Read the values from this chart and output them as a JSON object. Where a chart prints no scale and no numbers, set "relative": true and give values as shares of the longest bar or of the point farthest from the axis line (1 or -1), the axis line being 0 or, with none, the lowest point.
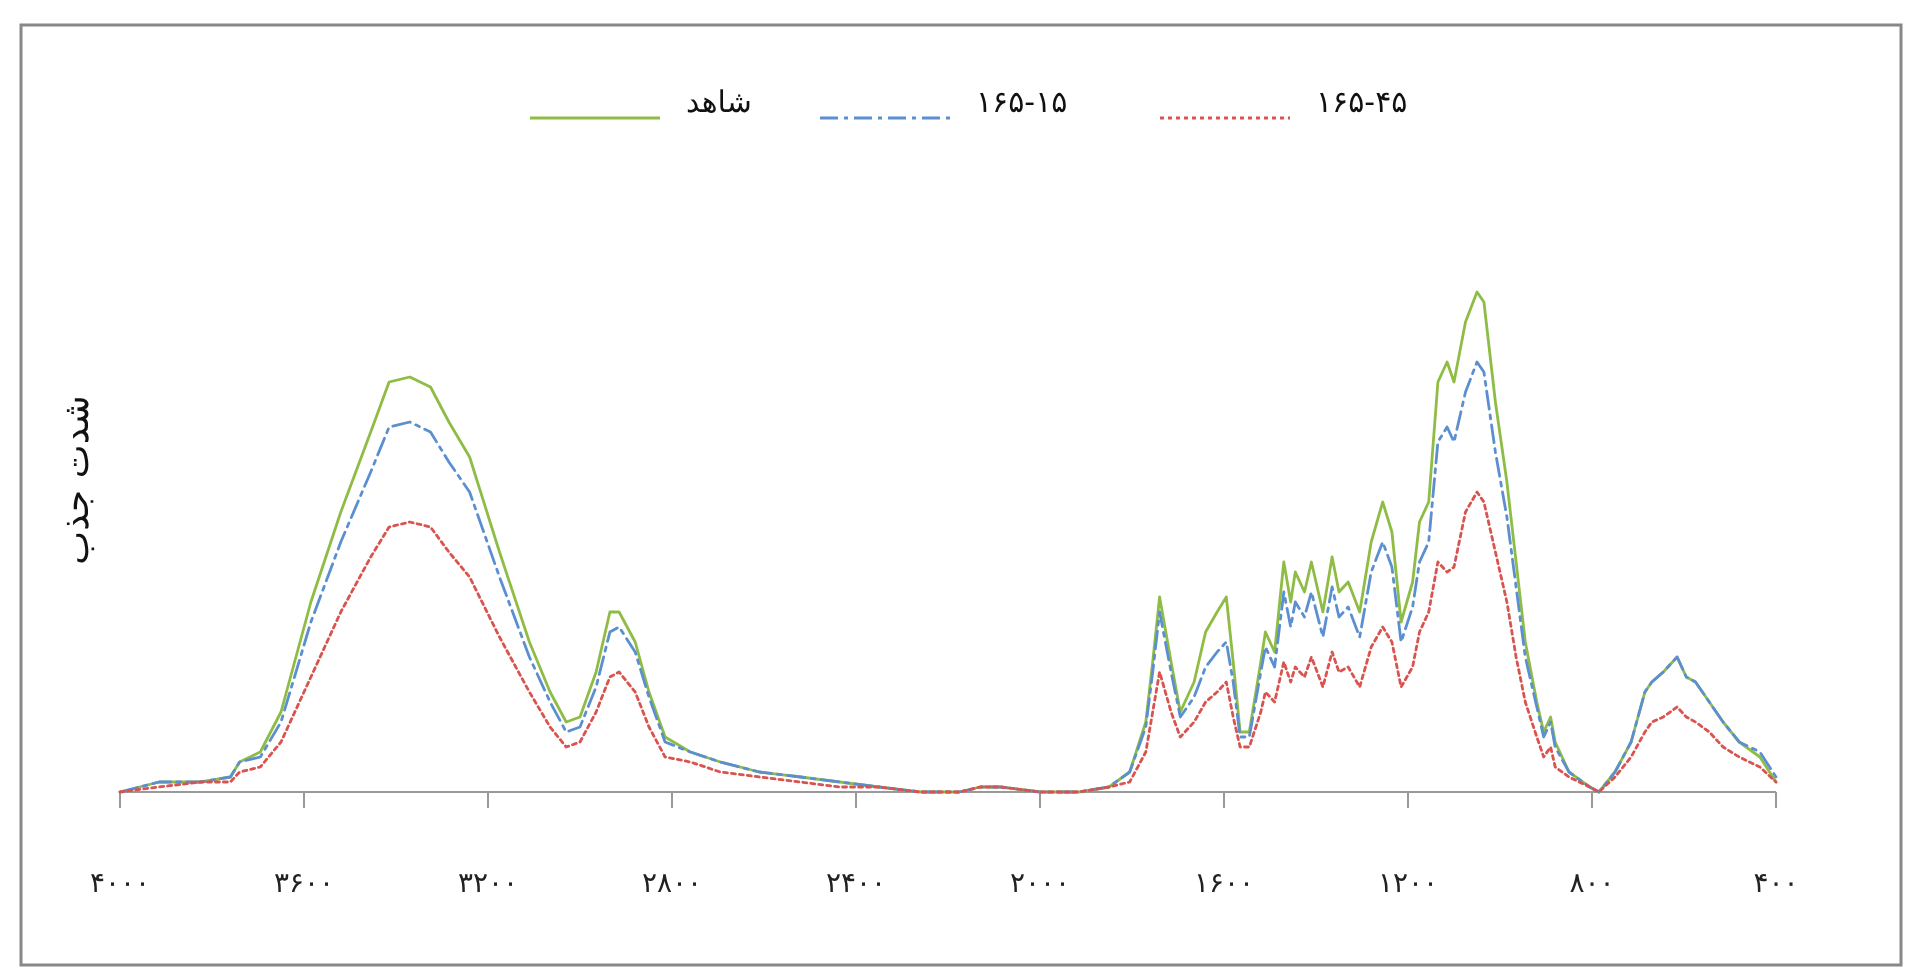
{
  "chart_data": {
    "type": "line",
    "ylabel": "شدت جذب",
    "relative": true,
    "legend": "top",
    "grid": false,
    "xlim": [
      4000,
      400
    ],
    "xticks": [
      {
        "value": 4000,
        "label": "۴۰۰۰"
      },
      {
        "value": 3600,
        "label": "۳۶۰۰"
      },
      {
        "value": 3200,
        "label": "۳۲۰۰"
      },
      {
        "value": 2800,
        "label": "۲۸۰۰"
      },
      {
        "value": 2400,
        "label": "۲۴۰۰"
      },
      {
        "value": 2000,
        "label": "۲۰۰۰"
      },
      {
        "value": 1600,
        "label": "۱۶۰۰"
      },
      {
        "value": 1200,
        "label": "۱۲۰۰"
      },
      {
        "value": 800,
        "label": "۸۰۰"
      },
      {
        "value": 400,
        "label": "۴۰۰"
      }
    ],
    "x": [
      4000,
      3915,
      3825,
      3760,
      3740,
      3695,
      3650,
      3585,
      3520,
      3455,
      3415,
      3370,
      3325,
      3285,
      3240,
      3175,
      3110,
      3065,
      3030,
      3000,
      2965,
      2935,
      2915,
      2880,
      2850,
      2815,
      2760,
      2695,
      2610,
      2520,
      2435,
      2350,
      2260,
      2175,
      2130,
      2085,
      2000,
      1915,
      1850,
      1805,
      1770,
      1755,
      1740,
      1715,
      1695,
      1665,
      1640,
      1615,
      1595,
      1580,
      1565,
      1545,
      1520,
      1510,
      1490,
      1470,
      1455,
      1445,
      1425,
      1410,
      1385,
      1365,
      1350,
      1330,
      1305,
      1280,
      1255,
      1235,
      1215,
      1190,
      1175,
      1155,
      1135,
      1115,
      1100,
      1075,
      1050,
      1035,
      1010,
      985,
      965,
      945,
      920,
      905,
      890,
      880,
      850,
      805,
      785,
      750,
      715,
      685,
      670,
      645,
      615,
      595,
      575,
      545,
      515,
      480,
      435,
      400
    ],
    "series": [
      {
        "name": "شاهد",
        "color": "#8fbc45",
        "line_style": "solid",
        "values": [
          0,
          0.02,
          0.02,
          0.03,
          0.06,
          0.08,
          0.16,
          0.38,
          0.56,
          0.72,
          0.82,
          0.83,
          0.81,
          0.74,
          0.67,
          0.48,
          0.3,
          0.2,
          0.14,
          0.15,
          0.24,
          0.36,
          0.36,
          0.3,
          0.2,
          0.11,
          0.08,
          0.06,
          0.04,
          0.03,
          0.02,
          0.01,
          0,
          0,
          0.01,
          0.01,
          0,
          0,
          0.01,
          0.04,
          0.14,
          0.26,
          0.39,
          0.26,
          0.16,
          0.22,
          0.32,
          0.36,
          0.39,
          0.26,
          0.12,
          0.12,
          0.26,
          0.32,
          0.28,
          0.46,
          0.38,
          0.44,
          0.4,
          0.46,
          0.36,
          0.47,
          0.4,
          0.42,
          0.36,
          0.5,
          0.58,
          0.52,
          0.34,
          0.42,
          0.54,
          0.58,
          0.82,
          0.86,
          0.82,
          0.94,
          1.0,
          0.98,
          0.78,
          0.62,
          0.46,
          0.3,
          0.18,
          0.12,
          0.15,
          0.1,
          0.04,
          0.01,
          0,
          0.04,
          0.1,
          0.2,
          0.22,
          0.24,
          0.27,
          0.23,
          0.22,
          0.18,
          0.14,
          0.1,
          0.07,
          0.02
        ]
      },
      {
        "name": "۱۶۵-۱۵",
        "color": "#5b8fd0",
        "line_style": "dashed",
        "values": [
          0,
          0.02,
          0.02,
          0.03,
          0.06,
          0.07,
          0.14,
          0.34,
          0.5,
          0.64,
          0.73,
          0.74,
          0.72,
          0.66,
          0.6,
          0.43,
          0.27,
          0.18,
          0.12,
          0.13,
          0.21,
          0.32,
          0.33,
          0.28,
          0.19,
          0.1,
          0.08,
          0.06,
          0.04,
          0.03,
          0.02,
          0.01,
          0,
          0,
          0.01,
          0.01,
          0,
          0,
          0.01,
          0.04,
          0.13,
          0.24,
          0.36,
          0.24,
          0.15,
          0.19,
          0.25,
          0.28,
          0.3,
          0.22,
          0.11,
          0.11,
          0.24,
          0.29,
          0.25,
          0.4,
          0.33,
          0.38,
          0.35,
          0.4,
          0.31,
          0.41,
          0.35,
          0.37,
          0.31,
          0.44,
          0.5,
          0.45,
          0.3,
          0.37,
          0.46,
          0.5,
          0.7,
          0.73,
          0.7,
          0.8,
          0.86,
          0.84,
          0.68,
          0.55,
          0.41,
          0.27,
          0.17,
          0.11,
          0.14,
          0.09,
          0.04,
          0.01,
          0,
          0.04,
          0.1,
          0.2,
          0.22,
          0.24,
          0.27,
          0.23,
          0.22,
          0.18,
          0.14,
          0.1,
          0.08,
          0.03
        ]
      },
      {
        "name": "۱۶۵-۴۵",
        "color": "#d9534f",
        "line_style": "dotted",
        "values": [
          0,
          0.01,
          0.02,
          0.02,
          0.04,
          0.05,
          0.1,
          0.23,
          0.36,
          0.47,
          0.53,
          0.54,
          0.53,
          0.48,
          0.43,
          0.31,
          0.2,
          0.13,
          0.09,
          0.1,
          0.16,
          0.23,
          0.24,
          0.2,
          0.13,
          0.07,
          0.06,
          0.04,
          0.03,
          0.02,
          0.01,
          0.01,
          0,
          0,
          0.01,
          0.01,
          0,
          0,
          0.01,
          0.02,
          0.08,
          0.16,
          0.24,
          0.16,
          0.11,
          0.14,
          0.18,
          0.2,
          0.22,
          0.15,
          0.09,
          0.09,
          0.16,
          0.2,
          0.18,
          0.26,
          0.22,
          0.25,
          0.23,
          0.27,
          0.21,
          0.28,
          0.24,
          0.25,
          0.21,
          0.29,
          0.33,
          0.3,
          0.21,
          0.25,
          0.32,
          0.36,
          0.46,
          0.44,
          0.45,
          0.56,
          0.6,
          0.58,
          0.48,
          0.38,
          0.27,
          0.18,
          0.11,
          0.07,
          0.09,
          0.05,
          0.03,
          0.01,
          0,
          0.03,
          0.07,
          0.12,
          0.14,
          0.15,
          0.17,
          0.15,
          0.14,
          0.12,
          0.09,
          0.07,
          0.05,
          0.02
        ]
      }
    ]
  }
}
